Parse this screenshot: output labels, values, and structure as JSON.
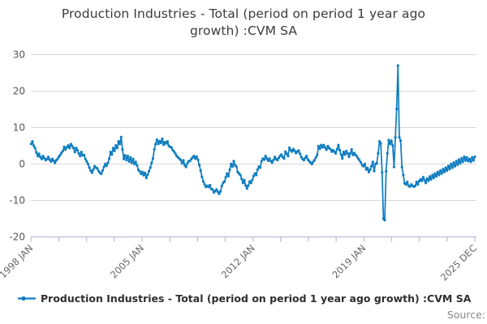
{
  "title": {
    "full": "Production Industries - Total (period on period 1 year ago growth) :CVM SA",
    "line1": "Production Industries - Total (period on period 1 year ago",
    "line2": "growth) :CVM SA"
  },
  "legend": {
    "series_label": "Production Industries - Total (period on period 1 year ago growth) :CVM SA"
  },
  "source_label": "Source:",
  "colors": {
    "line": "#0e7cc0",
    "grid": "#d9d9d9",
    "axis": "#b6bfd8",
    "title_text": "#3b3b3b",
    "y_label_text": "#555555",
    "x_label_text": "#666666",
    "source_text": "#888888",
    "background": "#ffffff"
  },
  "chart_data": {
    "type": "line",
    "title": "Production Industries - Total (period on period 1 year ago growth) :CVM SA",
    "series_name": "Production Industries - Total (period on period 1 year ago growth) :CVM SA",
    "frequency": "monthly",
    "x_start": "1998 JAN",
    "x_end": "2025 DEC",
    "x_tick_labels": [
      "1998 JAN",
      "2005 JAN",
      "2012 JAN",
      "2019 JAN",
      "2025 DEC"
    ],
    "x_minor_tick_count": 17,
    "y_tick_labels": [
      30,
      20,
      10,
      0,
      -10,
      -20
    ],
    "ylim": [
      -20,
      30
    ],
    "grid": "horizontal-only",
    "legend_position": "bottom-left",
    "marker": "dot",
    "values": [
      5.5,
      6.2,
      5.0,
      4.4,
      3.2,
      2.2,
      2.8,
      1.9,
      1.4,
      2.2,
      1.6,
      1.1,
      1.4,
      1.9,
      1.2,
      0.7,
      1.4,
      0.9,
      0.3,
      1.0,
      1.4,
      2.0,
      2.5,
      3.1,
      3.6,
      4.7,
      4.0,
      4.6,
      5.1,
      4.4,
      5.5,
      4.9,
      4.4,
      3.3,
      4.4,
      3.8,
      2.9,
      2.2,
      3.3,
      2.4,
      2.5,
      1.4,
      0.7,
      0.0,
      -1.0,
      -1.8,
      -2.4,
      -1.5,
      -0.6,
      -1.0,
      -1.2,
      -1.9,
      -2.4,
      -2.7,
      -1.8,
      -0.8,
      0.0,
      -0.5,
      0.3,
      1.5,
      3.3,
      2.6,
      4.4,
      3.6,
      5.1,
      4.4,
      6.2,
      5.5,
      7.4,
      4.0,
      1.4,
      2.4,
      1.1,
      2.2,
      0.7,
      1.8,
      0.3,
      1.4,
      0.0,
      0.6,
      -0.4,
      -1.6,
      -2.0,
      -2.7,
      -2.2,
      -3.1,
      -2.4,
      -3.8,
      -2.9,
      -2.0,
      -1.0,
      0.3,
      1.5,
      4.0,
      5.5,
      6.7,
      5.5,
      6.3,
      5.8,
      6.9,
      5.3,
      6.0,
      5.6,
      6.2,
      5.0,
      4.7,
      4.5,
      3.8,
      3.4,
      2.8,
      2.2,
      1.8,
      1.5,
      1.1,
      0.2,
      1.0,
      -0.3,
      -0.8,
      0.2,
      0.8,
      0.8,
      1.4,
      1.8,
      2.2,
      1.5,
      2.0,
      1.2,
      -0.3,
      -1.8,
      -3.5,
      -4.8,
      -5.6,
      -6.3,
      -6.0,
      -6.3,
      -5.8,
      -6.8,
      -7.0,
      -7.8,
      -7.4,
      -7.0,
      -7.6,
      -8.2,
      -7.5,
      -6.0,
      -5.2,
      -4.8,
      -3.6,
      -2.6,
      -3.3,
      -1.5,
      0.0,
      -0.7,
      0.8,
      -0.3,
      -0.7,
      -2.2,
      -2.6,
      -3.0,
      -4.1,
      -5.2,
      -4.4,
      -5.9,
      -6.7,
      -5.9,
      -4.8,
      -5.2,
      -4.4,
      -3.3,
      -2.6,
      -3.0,
      -1.5,
      -0.7,
      -1.0,
      0.8,
      1.5,
      1.2,
      2.2,
      1.5,
      0.9,
      1.5,
      0.8,
      0.4,
      1.1,
      1.9,
      1.4,
      1.1,
      1.7,
      2.2,
      2.6,
      1.9,
      1.5,
      3.4,
      2.8,
      2.2,
      4.5,
      3.8,
      3.4,
      4.1,
      3.6,
      3.0,
      3.4,
      3.7,
      2.8,
      1.9,
      1.4,
      1.1,
      1.7,
      2.2,
      1.2,
      0.8,
      0.4,
      0.0,
      0.6,
      1.1,
      1.8,
      2.5,
      4.9,
      4.2,
      5.2,
      4.6,
      5.2,
      4.5,
      3.9,
      4.9,
      4.4,
      4.1,
      3.4,
      3.8,
      3.4,
      2.9,
      4.1,
      5.2,
      3.8,
      2.6,
      1.5,
      3.3,
      2.6,
      3.6,
      2.9,
      2.0,
      2.9,
      4.0,
      2.5,
      3.0,
      2.5,
      2.1,
      1.5,
      1.0,
      0.4,
      -0.3,
      -0.6,
      0.0,
      -1.5,
      -1.1,
      -2.2,
      -1.5,
      -0.6,
      0.6,
      -1.9,
      0.0,
      0.2,
      2.9,
      6.2,
      5.7,
      -2.3,
      -15.0,
      -15.4,
      -2.0,
      2.9,
      6.6,
      5.5,
      6.4,
      5.1,
      -0.8,
      7.3,
      15.1,
      27.0,
      7.3,
      6.4,
      -0.8,
      -3.0,
      -5.3,
      -5.6,
      -4.9,
      -6.0,
      -6.2,
      -5.6,
      -6.0,
      -6.2,
      -6.0,
      -4.9,
      -5.6,
      -4.7,
      -4.2,
      -4.6,
      -3.6,
      -4.4,
      -5.2,
      -4.0,
      -4.6,
      -3.4,
      -4.2,
      -3.0,
      -3.8,
      -2.6,
      -3.4,
      -2.2,
      -3.0,
      -1.8,
      -2.6,
      -1.4,
      -2.2,
      -1.0,
      -1.8,
      -0.5,
      -1.4,
      0.0,
      -1.0,
      0.4,
      -0.6,
      0.8,
      -0.2,
      1.2,
      0.2,
      1.6,
      0.6,
      2.0,
      1.0,
      1.8,
      0.8,
      1.4,
      0.6,
      1.8,
      1.0,
      2.0
    ]
  }
}
